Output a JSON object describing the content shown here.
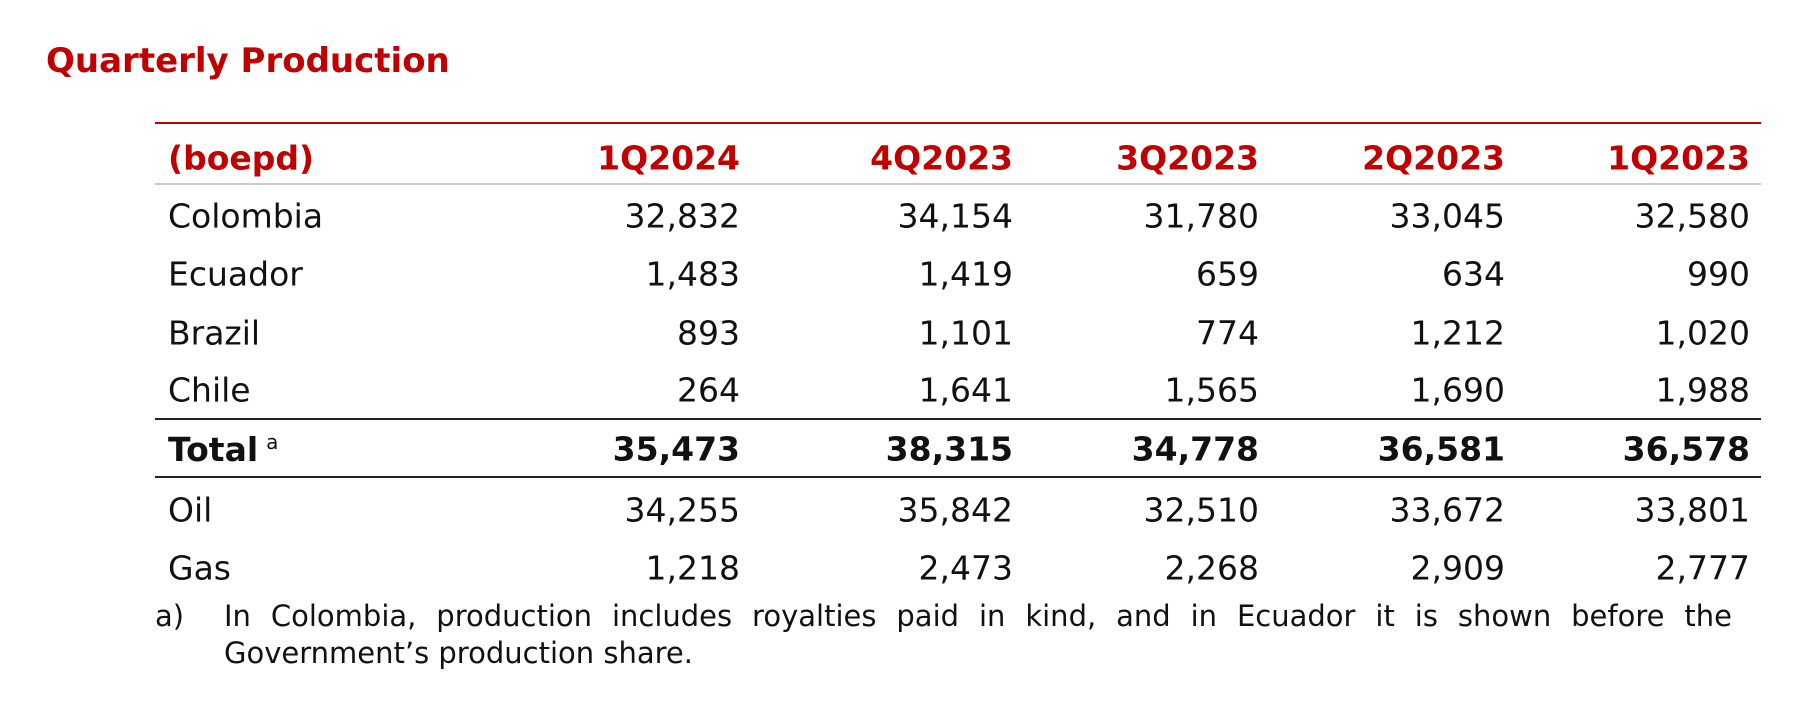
{
  "title": "Quarterly Production",
  "table": {
    "header": [
      "(boepd)",
      "1Q2024",
      "4Q2023",
      "3Q2023",
      "2Q2023",
      "1Q2023"
    ],
    "rows": [
      [
        "Colombia",
        "32,832",
        "34,154",
        "31,780",
        "33,045",
        "32,580"
      ],
      [
        "Ecuador",
        "1,483",
        "1,419",
        "659",
        "634",
        "990"
      ],
      [
        "Brazil",
        "893",
        "1,101",
        "774",
        "1,212",
        "1,020"
      ],
      [
        "Chile",
        "264",
        "1,641",
        "1,565",
        "1,690",
        "1,988"
      ]
    ],
    "total": {
      "label": "Total",
      "note": "a",
      "values": [
        "35,473",
        "38,315",
        "34,778",
        "36,581",
        "36,578"
      ]
    },
    "split_rows": [
      [
        "Oil",
        "34,255",
        "35,842",
        "32,510",
        "33,672",
        "33,801"
      ],
      [
        "Gas",
        "1,218",
        "2,473",
        "2,268",
        "2,909",
        "2,777"
      ]
    ]
  },
  "footnote": {
    "marker": "a)",
    "text": "In Colombia, production includes royalties paid in kind, and in Ecuador it is shown before the Government’s production share."
  }
}
